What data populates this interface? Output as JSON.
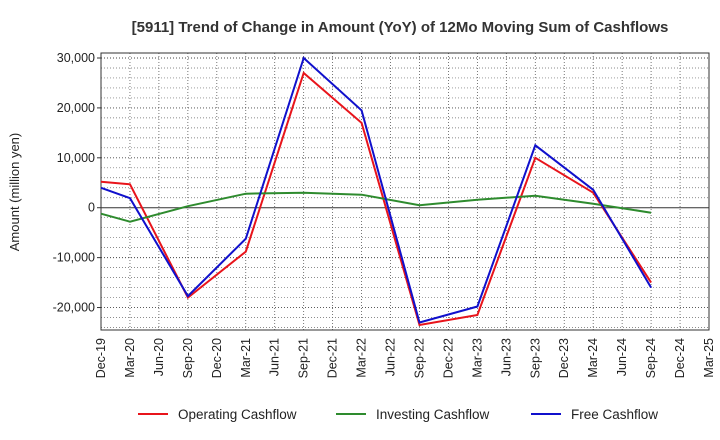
{
  "chart_data": {
    "type": "line",
    "title": "[5911]  Trend of Change in Amount (YoY) of 12Mo Moving Sum of Cashflows",
    "xlabel": "",
    "ylabel": "Amount (million yen)",
    "ylim": [
      -24500,
      31000
    ],
    "yticks": [
      30000,
      20000,
      10000,
      0,
      -10000,
      -20000
    ],
    "ytick_labels": [
      "30,000",
      "20,000",
      "10,000",
      "0",
      "-10,000",
      "-20,000"
    ],
    "categories": [
      "Dec-19",
      "Mar-20",
      "Jun-20",
      "Sep-20",
      "Dec-20",
      "Mar-21",
      "Jun-21",
      "Sep-21",
      "Dec-21",
      "Mar-22",
      "Jun-22",
      "Sep-22",
      "Dec-22",
      "Mar-23",
      "Jun-23",
      "Sep-23",
      "Dec-23",
      "Mar-24",
      "Jun-24",
      "Sep-24",
      "Dec-24",
      "Mar-25"
    ],
    "grid": true,
    "legend_position": "bottom",
    "series": [
      {
        "name": "Operating Cashflow",
        "color": "#e8141b",
        "values": [
          5200,
          4700,
          null,
          -18000,
          null,
          -8800,
          null,
          27000,
          null,
          17000,
          null,
          -23500,
          null,
          -21500,
          null,
          10000,
          null,
          3000,
          null,
          -15000,
          null,
          null
        ]
      },
      {
        "name": "Investing Cashflow",
        "color": "#2e8b2e",
        "values": [
          -1200,
          -2800,
          null,
          300,
          null,
          2800,
          null,
          3000,
          null,
          2600,
          null,
          500,
          null,
          1600,
          null,
          2400,
          null,
          800,
          null,
          -1000,
          null,
          null
        ]
      },
      {
        "name": "Free Cashflow",
        "color": "#1010cc",
        "values": [
          4000,
          1900,
          null,
          -17700,
          null,
          -6200,
          null,
          30000,
          null,
          19500,
          null,
          -23000,
          null,
          -19800,
          null,
          12500,
          null,
          3600,
          null,
          -16000,
          null,
          null
        ]
      }
    ]
  }
}
